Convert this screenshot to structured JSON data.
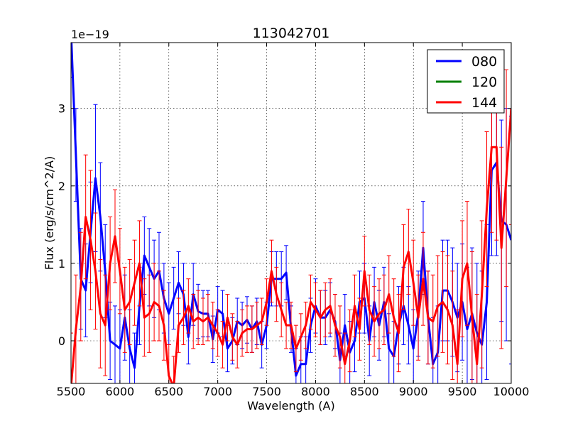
{
  "chart_data": {
    "type": "line",
    "title": "113042701",
    "xlabel": "Wavelength (A)",
    "ylabel": "Flux (erg/s/cm^2/A)",
    "y_multiplier": "1e−19",
    "xlim": [
      5500,
      10000
    ],
    "ylim": [
      -0.55,
      3.85
    ],
    "x_ticks": [
      5500,
      6000,
      6500,
      7000,
      7500,
      8000,
      8500,
      9000,
      9500,
      10000
    ],
    "x_tick_labels": [
      "5500",
      "6000",
      "6500",
      "7000",
      "7500",
      "8000",
      "8500",
      "9000",
      "9500",
      "10000"
    ],
    "y_ticks": [
      0,
      1,
      2,
      3
    ],
    "y_tick_labels": [
      "0",
      "1",
      "2",
      "3"
    ],
    "grid": true,
    "legend_position": "top-right",
    "series": [
      {
        "name": "080",
        "color": "#0000ff",
        "x": [
          5500,
          5550,
          5600,
          5650,
          5700,
          5750,
          5800,
          5850,
          5900,
          5950,
          6000,
          6050,
          6100,
          6150,
          6200,
          6250,
          6300,
          6350,
          6400,
          6450,
          6500,
          6550,
          6600,
          6650,
          6700,
          6750,
          6800,
          6850,
          6900,
          6950,
          7000,
          7050,
          7100,
          7150,
          7200,
          7250,
          7300,
          7350,
          7400,
          7450,
          7500,
          7550,
          7600,
          7650,
          7700,
          7750,
          7800,
          7850,
          7900,
          7950,
          8000,
          8050,
          8100,
          8150,
          8200,
          8250,
          8300,
          8350,
          8400,
          8450,
          8500,
          8550,
          8600,
          8650,
          8700,
          8750,
          8800,
          8850,
          8900,
          8950,
          9000,
          9050,
          9100,
          9150,
          9200,
          9250,
          9300,
          9350,
          9400,
          9450,
          9500,
          9550,
          9600,
          9650,
          9700,
          9750,
          9800,
          9850,
          9900,
          9950,
          10000
        ],
        "y": [
          4.0,
          2.4,
          0.8,
          0.65,
          1.4,
          2.1,
          1.6,
          0.9,
          0.0,
          -0.05,
          -0.1,
          0.3,
          -0.1,
          -0.35,
          0.45,
          1.1,
          0.95,
          0.8,
          0.9,
          0.55,
          0.35,
          0.55,
          0.75,
          0.6,
          0.05,
          0.6,
          0.38,
          0.35,
          0.35,
          0.02,
          0.4,
          0.35,
          -0.1,
          0.0,
          0.25,
          0.2,
          0.27,
          0.15,
          0.25,
          -0.05,
          0.2,
          0.8,
          0.8,
          0.8,
          0.88,
          0.15,
          -0.45,
          -0.3,
          -0.3,
          0.2,
          0.45,
          0.3,
          0.3,
          0.4,
          0.25,
          -0.25,
          0.2,
          -0.15,
          0.0,
          0.5,
          0.55,
          0.0,
          0.5,
          0.2,
          0.5,
          -0.1,
          -0.2,
          0.2,
          0.45,
          0.2,
          -0.1,
          0.35,
          1.2,
          0.3,
          -0.3,
          -0.15,
          0.65,
          0.65,
          0.5,
          0.3,
          0.5,
          0.15,
          0.35,
          0.1,
          -0.05,
          0.5,
          2.2,
          2.3,
          1.55,
          1.5,
          1.3
        ],
        "yerr": [
          0.6,
          0.6,
          0.65,
          0.6,
          0.65,
          0.95,
          0.7,
          0.6,
          0.5,
          0.5,
          0.5,
          0.55,
          0.5,
          0.45,
          0.5,
          0.5,
          0.5,
          0.5,
          0.5,
          0.45,
          0.4,
          0.4,
          0.4,
          0.4,
          0.35,
          0.4,
          0.35,
          0.3,
          0.3,
          0.3,
          0.3,
          0.3,
          0.3,
          0.3,
          0.3,
          0.3,
          0.3,
          0.3,
          0.3,
          0.3,
          0.3,
          0.35,
          0.35,
          0.35,
          0.35,
          0.3,
          0.35,
          0.35,
          0.35,
          0.35,
          0.35,
          0.35,
          0.35,
          0.35,
          0.35,
          0.35,
          0.4,
          0.4,
          0.4,
          0.4,
          0.45,
          0.45,
          0.45,
          0.45,
          0.45,
          0.45,
          0.45,
          0.5,
          0.5,
          0.5,
          0.5,
          0.55,
          0.6,
          0.6,
          0.6,
          0.6,
          0.65,
          0.65,
          0.7,
          0.7,
          0.75,
          0.8,
          0.85,
          0.9,
          0.95,
          1.0,
          1.1,
          1.2,
          1.3,
          1.5,
          1.6
        ]
      },
      {
        "name": "120",
        "color": "#008000",
        "x": [],
        "y": [],
        "yerr": []
      },
      {
        "name": "144",
        "color": "#ff0000",
        "x": [
          5500,
          5550,
          5600,
          5650,
          5700,
          5750,
          5800,
          5850,
          5900,
          5950,
          6000,
          6050,
          6100,
          6150,
          6200,
          6250,
          6300,
          6350,
          6400,
          6450,
          6500,
          6550,
          6600,
          6650,
          6700,
          6750,
          6800,
          6850,
          6900,
          6950,
          7000,
          7050,
          7100,
          7150,
          7200,
          7250,
          7300,
          7350,
          7400,
          7450,
          7500,
          7550,
          7600,
          7650,
          7700,
          7750,
          7800,
          7850,
          7900,
          7950,
          8000,
          8050,
          8100,
          8150,
          8200,
          8250,
          8300,
          8350,
          8400,
          8450,
          8500,
          8550,
          8600,
          8650,
          8700,
          8750,
          8800,
          8850,
          8900,
          8950,
          9000,
          9050,
          9100,
          9150,
          9200,
          9250,
          9300,
          9350,
          9400,
          9450,
          9500,
          9550,
          9600,
          9650,
          9700,
          9750,
          9800,
          9850,
          9900,
          9950,
          10000
        ],
        "y": [
          -0.6,
          0.15,
          0.7,
          1.6,
          1.3,
          0.9,
          0.35,
          0.2,
          1.0,
          1.35,
          0.9,
          0.4,
          0.5,
          0.75,
          1.0,
          0.3,
          0.35,
          0.5,
          0.45,
          0.2,
          -0.45,
          -0.6,
          0.2,
          0.3,
          0.45,
          0.25,
          0.3,
          0.25,
          0.3,
          0.2,
          0.1,
          -0.05,
          0.3,
          0.05,
          -0.05,
          0.1,
          0.15,
          0.15,
          0.2,
          0.25,
          0.5,
          0.9,
          0.6,
          0.4,
          0.2,
          0.2,
          -0.1,
          0.05,
          0.2,
          0.5,
          0.4,
          0.3,
          0.4,
          0.45,
          0.2,
          0.05,
          -0.3,
          0.0,
          0.45,
          0.15,
          0.9,
          0.4,
          0.25,
          0.35,
          0.4,
          0.6,
          0.3,
          0.1,
          0.95,
          1.15,
          0.75,
          0.3,
          0.8,
          0.3,
          0.25,
          0.45,
          0.5,
          0.4,
          0.2,
          -0.3,
          0.8,
          1.0,
          0.3,
          -0.3,
          0.6,
          1.7,
          2.5,
          2.5,
          1.2,
          2.1,
          3.0
        ],
        "yerr": [
          0.7,
          0.7,
          0.7,
          0.8,
          0.9,
          0.75,
          0.7,
          0.65,
          0.6,
          0.6,
          0.55,
          0.55,
          0.55,
          0.55,
          0.55,
          0.5,
          0.5,
          0.5,
          0.45,
          0.45,
          0.4,
          0.4,
          0.35,
          0.35,
          0.35,
          0.35,
          0.35,
          0.3,
          0.3,
          0.3,
          0.3,
          0.3,
          0.3,
          0.3,
          0.3,
          0.3,
          0.3,
          0.3,
          0.3,
          0.3,
          0.3,
          0.4,
          0.35,
          0.35,
          0.3,
          0.3,
          0.3,
          0.3,
          0.3,
          0.35,
          0.35,
          0.35,
          0.35,
          0.35,
          0.4,
          0.4,
          0.4,
          0.4,
          0.4,
          0.4,
          0.45,
          0.45,
          0.45,
          0.45,
          0.45,
          0.5,
          0.5,
          0.5,
          0.55,
          0.55,
          0.55,
          0.55,
          0.6,
          0.6,
          0.6,
          0.65,
          0.65,
          0.7,
          0.7,
          0.7,
          0.75,
          0.8,
          0.85,
          0.9,
          0.95,
          1.0,
          1.1,
          1.2,
          1.3,
          1.4,
          1.5
        ]
      }
    ]
  }
}
